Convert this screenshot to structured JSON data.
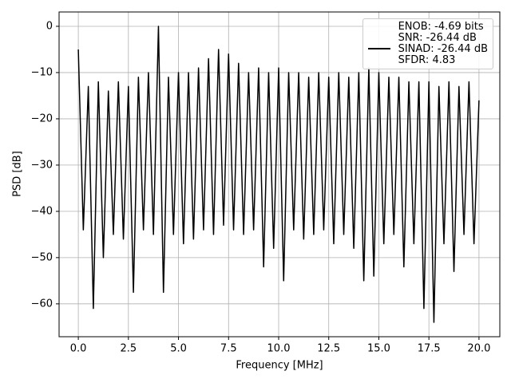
{
  "chart_data": {
    "type": "line",
    "xlabel": "Frequency [MHz]",
    "ylabel": "PSD [dB]",
    "x": [
      0,
      0.25,
      0.5,
      0.75,
      1,
      1.25,
      1.5,
      1.75,
      2,
      2.25,
      2.5,
      2.75,
      3,
      3.25,
      3.5,
      3.75,
      4,
      4.25,
      4.5,
      4.75,
      5,
      5.25,
      5.5,
      5.75,
      6,
      6.25,
      6.5,
      6.75,
      7,
      7.25,
      7.5,
      7.75,
      8,
      8.25,
      8.5,
      8.75,
      9,
      9.25,
      9.5,
      9.75,
      10,
      10.25,
      10.5,
      10.75,
      11,
      11.25,
      11.5,
      11.75,
      12,
      12.25,
      12.5,
      12.75,
      13,
      13.25,
      13.5,
      13.75,
      14,
      14.25,
      14.5,
      14.75,
      15,
      15.25,
      15.5,
      15.75,
      16,
      16.25,
      16.5,
      16.75,
      17,
      17.25,
      17.5,
      17.75,
      18,
      18.25,
      18.5,
      18.75,
      19,
      19.25,
      19.5,
      19.75,
      20
    ],
    "series": [
      {
        "name": "ENOB: -4.69 bits\nSNR: -26.44 dB\nSINAD: -26.44 dB\nSFDR: 4.83",
        "color": "#000000",
        "values": [
          -5,
          -44,
          -13,
          -61,
          -12,
          -50,
          -14,
          -45,
          -12,
          -46,
          -13,
          -57.5,
          -11,
          -44,
          -10,
          -45,
          0,
          -57.5,
          -11,
          -45,
          -10,
          -47,
          -10,
          -46,
          -9,
          -44,
          -7,
          -45,
          -5,
          -43,
          -6,
          -44,
          -8,
          -45,
          -10,
          -44,
          -9,
          -52,
          -10,
          -48,
          -9,
          -55,
          -10,
          -44,
          -10,
          -46,
          -11,
          -45,
          -10,
          -44,
          -11,
          -47,
          -10,
          -45,
          -11,
          -48,
          -10,
          -55,
          -9,
          -54,
          -10,
          -47,
          -11,
          -45,
          -11,
          -52,
          -12,
          -47,
          -12,
          -61,
          -12,
          -64,
          -13,
          -47,
          -12,
          -53,
          -13,
          -45,
          -12,
          -47,
          -16
        ]
      }
    ],
    "xlim": [
      -0.96,
      21.04
    ],
    "xticks": [
      {
        "value": 0,
        "label": "0.0"
      },
      2.5,
      {
        "value": 5,
        "label": "5.0"
      },
      7.5,
      {
        "value": 10,
        "label": "10.0"
      },
      12.5,
      {
        "value": 15,
        "label": "15.0"
      },
      17.5,
      {
        "value": 20,
        "label": "20.0"
      }
    ],
    "ylim": [
      -67.1,
      3.1
    ],
    "yticks": [
      {
        "value": -60,
        "label": "−60"
      },
      {
        "value": -50,
        "label": "−50"
      },
      {
        "value": -40,
        "label": "−40"
      },
      {
        "value": -30,
        "label": "−30"
      },
      {
        "value": -20,
        "label": "−20"
      },
      {
        "value": -10,
        "label": "−10"
      },
      0
    ],
    "grid": true,
    "legend": "upper right"
  }
}
